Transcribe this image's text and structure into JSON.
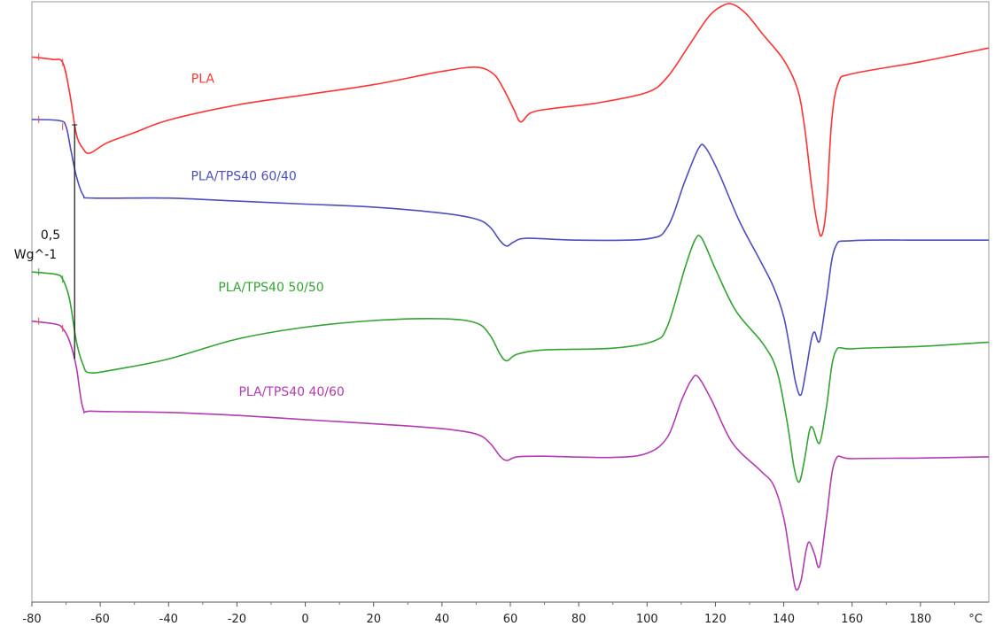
{
  "chart_data": {
    "type": "line",
    "title": "",
    "xlabel": "",
    "ylabel": "",
    "x_unit": "°C",
    "xlim": [
      -80,
      200
    ],
    "xticks": [
      -80,
      -60,
      -40,
      -20,
      0,
      20,
      40,
      60,
      80,
      100,
      120,
      140,
      160,
      180
    ],
    "ylim": [
      0,
      100
    ],
    "grid": false,
    "legend": "inline labels",
    "scale_bar": {
      "value": "0,5",
      "unit": "Wg^-1",
      "x": -67.5,
      "y_bottom": 40.5,
      "y_top": 79.5
    },
    "series": [
      {
        "name": "PLA",
        "color": "#ff3333",
        "label_at": [
          -30,
          86.5
        ],
        "points": [
          [
            -80,
            90.8
          ],
          [
            -74,
            90.4
          ],
          [
            -71,
            89.9
          ],
          [
            -69,
            85
          ],
          [
            -67,
            78
          ],
          [
            -65,
            75.5
          ],
          [
            -63,
            74.8
          ],
          [
            -58,
            76.5
          ],
          [
            -50,
            78.2
          ],
          [
            -40,
            80.3
          ],
          [
            -20,
            82.8
          ],
          [
            0,
            84.5
          ],
          [
            20,
            86.2
          ],
          [
            40,
            88.4
          ],
          [
            50,
            89.1
          ],
          [
            55,
            88.0
          ],
          [
            58,
            85.5
          ],
          [
            61,
            82.1
          ],
          [
            63,
            80.0
          ],
          [
            66,
            81.5
          ],
          [
            72,
            82.2
          ],
          [
            85,
            83.1
          ],
          [
            100,
            84.9
          ],
          [
            106,
            87.5
          ],
          [
            112,
            92.5
          ],
          [
            118,
            97.5
          ],
          [
            122,
            99.3
          ],
          [
            125,
            99.6
          ],
          [
            129,
            98.0
          ],
          [
            134,
            94.5
          ],
          [
            140,
            90.3
          ],
          [
            144,
            85.5
          ],
          [
            146,
            79.5
          ],
          [
            148,
            70.0
          ],
          [
            149.5,
            64.0
          ],
          [
            151,
            61.0
          ],
          [
            152.5,
            66.0
          ],
          [
            154,
            80.0
          ],
          [
            156,
            86.5
          ],
          [
            160,
            88.0
          ],
          [
            180,
            90.0
          ],
          [
            200,
            92.3
          ]
        ]
      },
      {
        "name": "PLA/TPS40 60/40",
        "color": "#4d4dbd",
        "label_at": [
          -18,
          70.3
        ],
        "points": [
          [
            -80,
            80.4
          ],
          [
            -72,
            80.2
          ],
          [
            -70,
            79.2
          ],
          [
            -68.5,
            75.0
          ],
          [
            -67,
            71.0
          ],
          [
            -65,
            67.8
          ],
          [
            -62,
            67.3
          ],
          [
            -40,
            67.3
          ],
          [
            -20,
            66.8
          ],
          [
            0,
            66.3
          ],
          [
            20,
            65.8
          ],
          [
            40,
            64.8
          ],
          [
            50,
            63.8
          ],
          [
            54,
            62.5
          ],
          [
            57,
            60.2
          ],
          [
            59,
            59.3
          ],
          [
            61,
            60.0
          ],
          [
            65,
            60.6
          ],
          [
            80,
            60.3
          ],
          [
            100,
            60.5
          ],
          [
            106,
            62.5
          ],
          [
            111,
            70.0
          ],
          [
            115,
            75.5
          ],
          [
            117,
            75.8
          ],
          [
            121,
            71.5
          ],
          [
            127,
            63.5
          ],
          [
            133,
            57.0
          ],
          [
            137,
            52.5
          ],
          [
            140,
            47.5
          ],
          [
            142,
            41.5
          ],
          [
            143.5,
            36.5
          ],
          [
            145,
            34.5
          ],
          [
            146.5,
            38.5
          ],
          [
            148,
            43.5
          ],
          [
            149,
            45.0
          ],
          [
            150.5,
            43.5
          ],
          [
            152.5,
            50.5
          ],
          [
            155,
            59.0
          ],
          [
            160,
            60.2
          ],
          [
            180,
            60.3
          ],
          [
            200,
            60.3
          ]
        ]
      },
      {
        "name": "PLA/TPS40 50/50",
        "color": "#33a333",
        "label_at": [
          -10,
          51.8
        ],
        "points": [
          [
            -80,
            55.0
          ],
          [
            -73,
            54.6
          ],
          [
            -71,
            53.8
          ],
          [
            -69,
            50.5
          ],
          [
            -67,
            43.5
          ],
          [
            -65,
            39.5
          ],
          [
            -63,
            38.2
          ],
          [
            -55,
            38.8
          ],
          [
            -40,
            40.5
          ],
          [
            -20,
            43.8
          ],
          [
            0,
            45.8
          ],
          [
            20,
            46.9
          ],
          [
            40,
            47.2
          ],
          [
            50,
            46.5
          ],
          [
            54,
            44.5
          ],
          [
            57,
            41.3
          ],
          [
            59,
            40.2
          ],
          [
            62,
            41.3
          ],
          [
            70,
            42.0
          ],
          [
            90,
            42.3
          ],
          [
            102,
            43.5
          ],
          [
            106,
            46.0
          ],
          [
            111,
            55.5
          ],
          [
            114,
            60.3
          ],
          [
            116,
            60.6
          ],
          [
            120,
            55.5
          ],
          [
            126,
            48.5
          ],
          [
            134,
            43.0
          ],
          [
            138,
            38.5
          ],
          [
            141,
            30.0
          ],
          [
            143,
            22.5
          ],
          [
            144.5,
            20.0
          ],
          [
            146,
            23.5
          ],
          [
            147.5,
            28.5
          ],
          [
            148.5,
            29.0
          ],
          [
            150.5,
            26.5
          ],
          [
            152.5,
            32.5
          ],
          [
            155,
            41.5
          ],
          [
            160,
            42.2
          ],
          [
            180,
            42.6
          ],
          [
            200,
            43.3
          ]
        ]
      },
      {
        "name": "PLA/TPS40 40/60",
        "color": "#b23bb2",
        "label_at": [
          -4,
          34.4
        ],
        "points": [
          [
            -80,
            46.8
          ],
          [
            -73,
            46.3
          ],
          [
            -71,
            45.6
          ],
          [
            -69,
            43.5
          ],
          [
            -67,
            39.2
          ],
          [
            -65,
            32.2
          ],
          [
            -62,
            31.8
          ],
          [
            -40,
            31.6
          ],
          [
            -20,
            31.1
          ],
          [
            0,
            30.4
          ],
          [
            20,
            29.7
          ],
          [
            40,
            28.9
          ],
          [
            50,
            28.0
          ],
          [
            54,
            26.5
          ],
          [
            57,
            24.3
          ],
          [
            59,
            23.6
          ],
          [
            62,
            24.2
          ],
          [
            70,
            24.3
          ],
          [
            90,
            24.1
          ],
          [
            100,
            24.8
          ],
          [
            106,
            27.5
          ],
          [
            110,
            33.5
          ],
          [
            113,
            37.0
          ],
          [
            115,
            37.5
          ],
          [
            119,
            33.5
          ],
          [
            125,
            26.5
          ],
          [
            133,
            22.0
          ],
          [
            137,
            19.5
          ],
          [
            140,
            14.0
          ],
          [
            142,
            7.0
          ],
          [
            143.5,
            2.2
          ],
          [
            145,
            3.5
          ],
          [
            146.5,
            8.5
          ],
          [
            147.5,
            10.0
          ],
          [
            149,
            8.0
          ],
          [
            150.5,
            6.0
          ],
          [
            152.5,
            14.0
          ],
          [
            155,
            23.5
          ],
          [
            160,
            23.9
          ],
          [
            180,
            24.0
          ],
          [
            200,
            24.2
          ]
        ]
      }
    ]
  }
}
